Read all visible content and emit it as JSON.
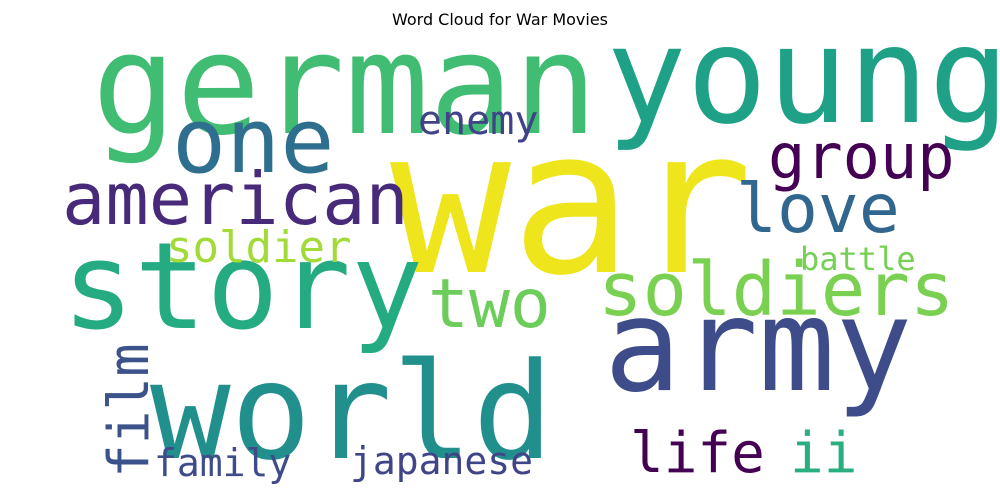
{
  "chart_data": {
    "type": "wordcloud",
    "title": "Word Cloud for War Movies",
    "colormap": "viridis",
    "words": [
      {
        "text": "war",
        "weight": 1.0,
        "color": "#efe51c",
        "vertical": false
      },
      {
        "text": "german",
        "weight": 0.7,
        "color": "#40bd72",
        "vertical": false
      },
      {
        "text": "young",
        "weight": 0.67,
        "color": "#1fa188",
        "vertical": false
      },
      {
        "text": "world",
        "weight": 0.67,
        "color": "#21908d",
        "vertical": false
      },
      {
        "text": "army",
        "weight": 0.64,
        "color": "#3e4c8a",
        "vertical": false
      },
      {
        "text": "story",
        "weight": 0.6,
        "color": "#25ab82",
        "vertical": false
      },
      {
        "text": "one",
        "weight": 0.45,
        "color": "#2e6e8e",
        "vertical": false
      },
      {
        "text": "soldiers",
        "weight": 0.37,
        "color": "#7ad151",
        "vertical": false
      },
      {
        "text": "american",
        "weight": 0.36,
        "color": "#472a7a",
        "vertical": false
      },
      {
        "text": "love",
        "weight": 0.34,
        "color": "#31668e",
        "vertical": false
      },
      {
        "text": "two",
        "weight": 0.34,
        "color": "#6ccd5a",
        "vertical": false
      },
      {
        "text": "group",
        "weight": 0.31,
        "color": "#440154",
        "vertical": false
      },
      {
        "text": "life",
        "weight": 0.28,
        "color": "#440154",
        "vertical": false
      },
      {
        "text": "ii",
        "weight": 0.28,
        "color": "#29af7f",
        "vertical": false
      },
      {
        "text": "film",
        "weight": 0.28,
        "color": "#3b528b",
        "vertical": true
      },
      {
        "text": "soldier",
        "weight": 0.22,
        "color": "#a2da37",
        "vertical": false
      },
      {
        "text": "enemy",
        "weight": 0.2,
        "color": "#404387",
        "vertical": false
      },
      {
        "text": "family",
        "weight": 0.19,
        "color": "#3e4c8a",
        "vertical": false
      },
      {
        "text": "japanese",
        "weight": 0.19,
        "color": "#404588",
        "vertical": false
      },
      {
        "text": "battle",
        "weight": 0.16,
        "color": "#75d054",
        "vertical": false
      }
    ]
  }
}
